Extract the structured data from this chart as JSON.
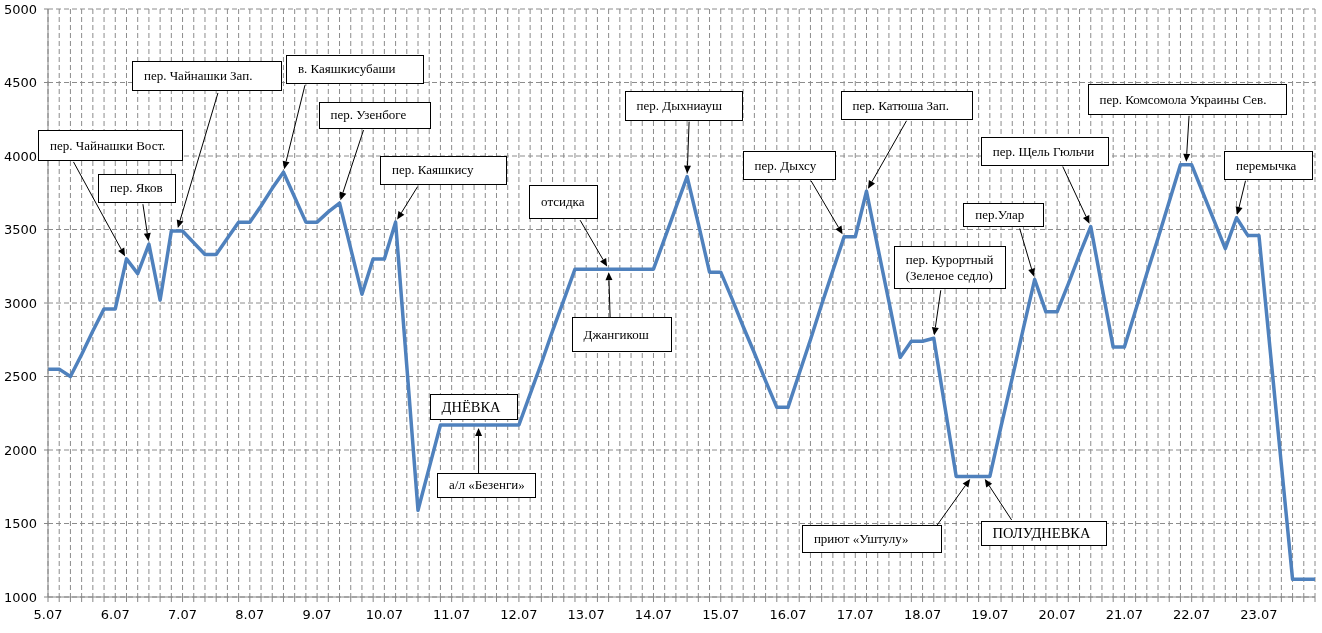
{
  "chart_data": {
    "type": "line",
    "categories": [
      "5.07",
      null,
      null,
      null,
      null,
      null,
      "6.07",
      null,
      null,
      null,
      null,
      null,
      "7.07",
      null,
      null,
      null,
      null,
      null,
      "8.07",
      null,
      null,
      null,
      null,
      null,
      "9.07",
      null,
      null,
      null,
      null,
      null,
      "10.07",
      null,
      null,
      null,
      null,
      null,
      "11.07",
      null,
      null,
      null,
      null,
      null,
      "12.07",
      null,
      null,
      null,
      null,
      null,
      "13.07",
      null,
      null,
      null,
      null,
      null,
      "14.07",
      null,
      null,
      null,
      null,
      null,
      "15.07",
      null,
      null,
      null,
      null,
      null,
      "16.07",
      null,
      null,
      null,
      null,
      null,
      "17.07",
      null,
      null,
      null,
      null,
      null,
      "18.07",
      null,
      null,
      null,
      null,
      null,
      "19.07",
      null,
      null,
      null,
      null,
      null,
      "20.07",
      null,
      null,
      null,
      null,
      null,
      "21.07",
      null,
      null,
      null,
      null,
      null,
      "22.07",
      null,
      null,
      null,
      null,
      null,
      "23.07",
      null,
      null,
      null,
      null,
      null
    ],
    "values": [
      2550,
      2550,
      2500,
      2650,
      2810,
      2960,
      2960,
      3300,
      3200,
      3400,
      3020,
      3490,
      3490,
      3410,
      3330,
      3330,
      3440,
      3550,
      3550,
      3660,
      3780,
      3890,
      3720,
      3550,
      3550,
      3620,
      3680,
      3370,
      3060,
      3300,
      3300,
      3550,
      2570,
      1590,
      1880,
      2170,
      2170,
      2170,
      2170,
      2170,
      2170,
      2170,
      2170,
      2380,
      2590,
      2810,
      3020,
      3230,
      3230,
      3230,
      3230,
      3230,
      3230,
      3230,
      3230,
      3440,
      3650,
      3860,
      3540,
      3210,
      3210,
      3030,
      2840,
      2660,
      2470,
      2290,
      2290,
      2520,
      2750,
      2990,
      3220,
      3450,
      3450,
      3760,
      3380,
      3010,
      2630,
      2740,
      2740,
      2760,
      2290,
      1820,
      1820,
      1820,
      1820,
      2160,
      2490,
      2830,
      3160,
      2940,
      2940,
      3130,
      3330,
      3520,
      3110,
      2700,
      2700,
      2950,
      3200,
      3440,
      3690,
      3940,
      3940,
      3750,
      3560,
      3370,
      3580,
      3460,
      3460,
      2680,
      1900,
      1120,
      1120,
      1120
    ],
    "color": "#4f81bd",
    "ylim": [
      1000,
      5000
    ],
    "yticks": [
      1000,
      1500,
      2000,
      2500,
      3000,
      3500,
      4000,
      4500,
      5000
    ],
    "grid": true,
    "annotations": [
      "пер. Чайнашки Вост.",
      "пер. Яков",
      "пер. Чайнашки Зап.",
      "в. Каяшкисубаши",
      "пер. Узенбоге",
      "пер. Каяшкису",
      "ДНЁВКА",
      "а/л «Безенги»",
      "отсидка",
      "Джангикош",
      "пер. Дыхниауш",
      "пер. Дыхсу",
      "пер. Катюша Зап.",
      "пер. Курортный (Зеленое седло)",
      "пер.Улар",
      "пер. Щель Гюльчи",
      "пер. Комсомола Украины Сев.",
      "перемычка",
      "приют «Уштулу»",
      "ПОЛУДНЕВКА"
    ]
  }
}
